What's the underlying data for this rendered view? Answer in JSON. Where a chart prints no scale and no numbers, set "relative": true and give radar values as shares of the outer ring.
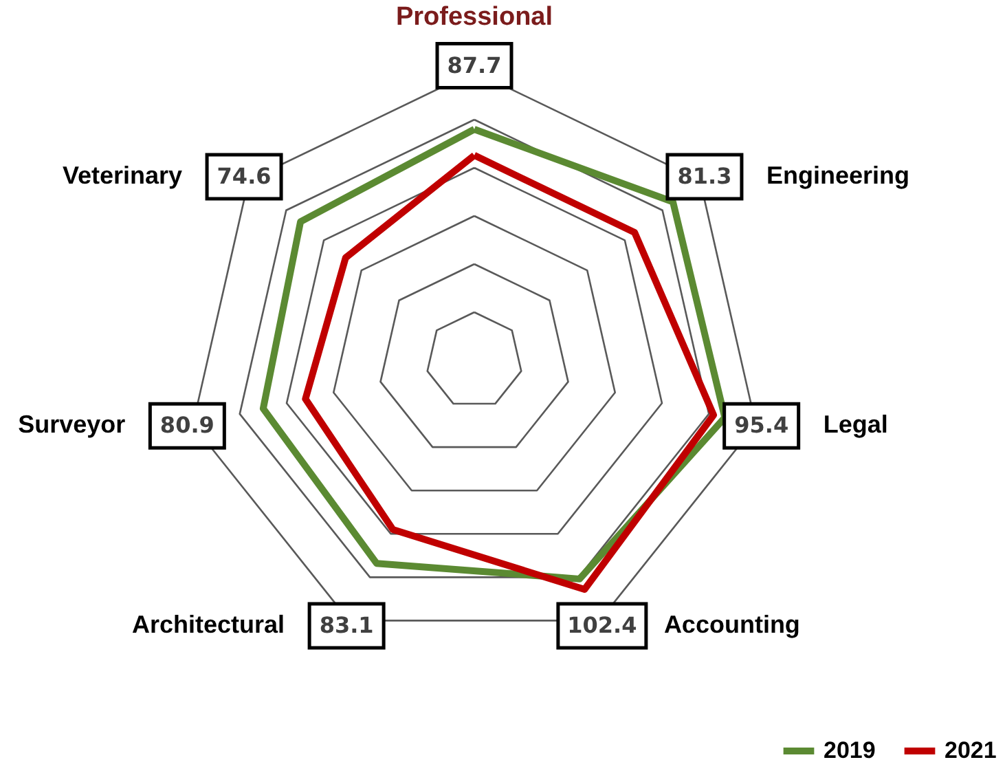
{
  "chart_data": {
    "type": "radar",
    "relative": true,
    "grid": true,
    "legend": "bottom right",
    "categories": [
      "Professional",
      "Engineering",
      "Legal",
      "Accounting",
      "Architectural",
      "Surveyor",
      "Veterinary"
    ],
    "series": [
      {
        "name": "2019",
        "color": "#5b8a32",
        "values": [
          0.8,
          0.88,
          0.89,
          0.84,
          0.78,
          0.75,
          0.77
        ]
      },
      {
        "name": "2021",
        "color": "#c00000",
        "values": [
          0.71,
          0.71,
          0.85,
          0.88,
          0.65,
          0.6,
          0.57
        ]
      }
    ],
    "annotations": [
      {
        "text": "87.7",
        "x": "Professional"
      },
      {
        "text": "81.3",
        "x": "Engineering"
      },
      {
        "text": "95.4",
        "x": "Legal"
      },
      {
        "text": "102.4",
        "x": "Accounting"
      },
      {
        "text": "83.1",
        "x": "Architectural"
      },
      {
        "text": "80.9",
        "x": "Surveyor"
      },
      {
        "text": "74.6",
        "x": "Veterinary"
      }
    ]
  }
}
